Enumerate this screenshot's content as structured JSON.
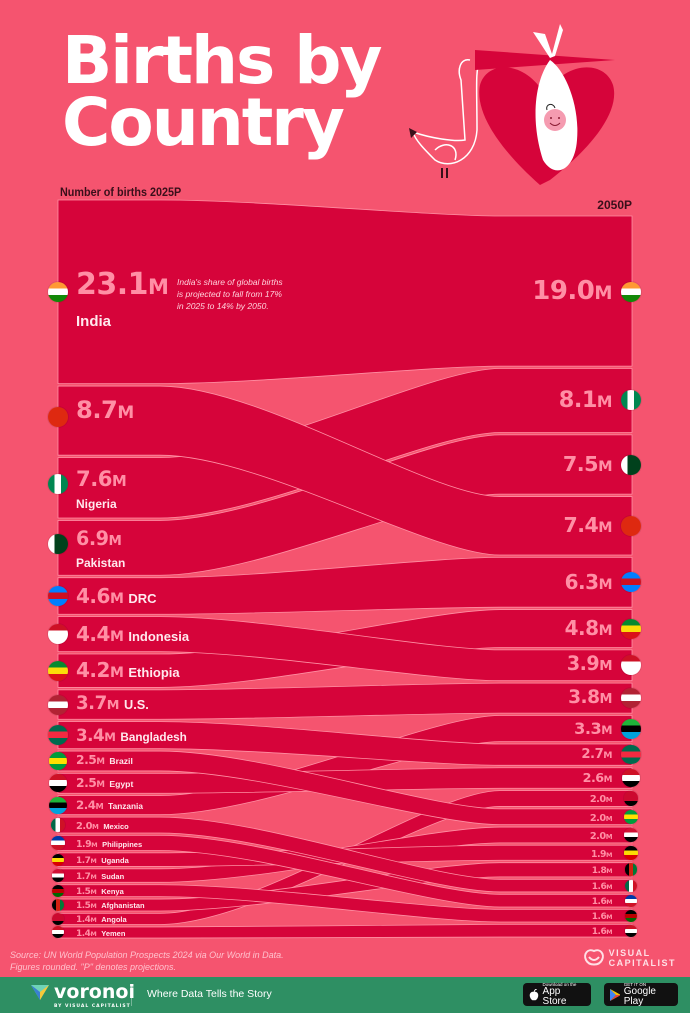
{
  "header": {
    "title_line1": "Births by",
    "title_line2": "Country",
    "subtitle_left": "Number of births 2025P",
    "subtitle_right": "2050P"
  },
  "annotation": "India's share of global births is projected to fall from 17% in 2025 to 14% by 2050.",
  "footer": {
    "source_line1": "Source: UN World Population Prospects 2024 via Our World in Data.",
    "source_line2": "Figures rounded. \"P\" denotes projections.",
    "brand_line1": "VISUAL",
    "brand_line2": "CAPITALIST",
    "voronoi": "voronoi",
    "voronoi_by": "BY VISUAL CAPITALIST",
    "tagline": "Where Data Tells the Story",
    "appstore_small": "Download on the",
    "appstore_big": "App Store",
    "googleplay_small": "GET IT ON",
    "googleplay_big": "Google Play"
  },
  "colors": {
    "background": "#f5546f",
    "band": "#d6043a",
    "value_text": "#ff8fa5",
    "footer": "#2e8f63"
  },
  "chart_data": {
    "type": "bump",
    "title": "Births by Country",
    "xlabel": "",
    "ylabel": "Number of births",
    "units": "millions",
    "categories": [
      "2025P",
      "2050P"
    ],
    "series": [
      {
        "name": "India",
        "values": [
          23.1,
          19.0
        ]
      },
      {
        "name": "China",
        "values": [
          8.7,
          7.4
        ]
      },
      {
        "name": "Nigeria",
        "values": [
          7.6,
          8.1
        ]
      },
      {
        "name": "Pakistan",
        "values": [
          6.9,
          7.5
        ]
      },
      {
        "name": "DRC",
        "values": [
          4.6,
          6.3
        ]
      },
      {
        "name": "Indonesia",
        "values": [
          4.4,
          3.9
        ]
      },
      {
        "name": "Ethiopia",
        "values": [
          4.2,
          4.8
        ]
      },
      {
        "name": "U.S.",
        "values": [
          3.7,
          3.8
        ]
      },
      {
        "name": "Bangladesh",
        "values": [
          3.4,
          2.7
        ]
      },
      {
        "name": "Brazil",
        "values": [
          2.5,
          2.0
        ]
      },
      {
        "name": "Egypt",
        "values": [
          2.5,
          2.6
        ]
      },
      {
        "name": "Tanzania",
        "values": [
          2.4,
          3.3
        ]
      },
      {
        "name": "Mexico",
        "values": [
          2.0,
          1.6
        ]
      },
      {
        "name": "Philippines",
        "values": [
          1.9,
          1.6
        ]
      },
      {
        "name": "Uganda",
        "values": [
          1.7,
          1.9
        ]
      },
      {
        "name": "Sudan",
        "values": [
          1.7,
          2.0
        ]
      },
      {
        "name": "Kenya",
        "values": [
          1.5,
          1.6
        ]
      },
      {
        "name": "Afghanistan",
        "values": [
          1.5,
          1.8
        ]
      },
      {
        "name": "Angola",
        "values": [
          1.4,
          2.0
        ]
      },
      {
        "name": "Yemen",
        "values": [
          1.4,
          1.6
        ]
      }
    ],
    "left_labels": [
      {
        "value": "23.1",
        "unit": "M",
        "name": "India"
      },
      {
        "value": "8.7",
        "unit": "M",
        "name": ""
      },
      {
        "value": "7.6",
        "unit": "M",
        "name": "Nigeria"
      },
      {
        "value": "6.9",
        "unit": "M",
        "name": "Pakistan"
      },
      {
        "value": "4.6",
        "unit": "M",
        "name": "DRC"
      },
      {
        "value": "4.4",
        "unit": "M",
        "name": "Indonesia"
      },
      {
        "value": "4.2",
        "unit": "M",
        "name": "Ethiopia"
      },
      {
        "value": "3.7",
        "unit": "M",
        "name": "U.S."
      },
      {
        "value": "3.4",
        "unit": "M",
        "name": "Bangladesh"
      },
      {
        "value": "2.5",
        "unit": "M",
        "name": "Brazil"
      },
      {
        "value": "2.5",
        "unit": "M",
        "name": "Egypt"
      },
      {
        "value": "2.4",
        "unit": "M",
        "name": "Tanzania"
      },
      {
        "value": "2.0",
        "unit": "M",
        "name": "Mexico"
      },
      {
        "value": "1.9",
        "unit": "M",
        "name": "Philippines"
      },
      {
        "value": "1.7",
        "unit": "M",
        "name": "Uganda"
      },
      {
        "value": "1.7",
        "unit": "M",
        "name": "Sudan"
      },
      {
        "value": "1.5",
        "unit": "M",
        "name": "Kenya"
      },
      {
        "value": "1.5",
        "unit": "M",
        "name": "Afghanistan"
      },
      {
        "value": "1.4",
        "unit": "M",
        "name": "Angola"
      },
      {
        "value": "1.4",
        "unit": "M",
        "name": "Yemen"
      }
    ],
    "right_labels": [
      {
        "value": "19.0",
        "unit": "M",
        "country": "India"
      },
      {
        "value": "8.1",
        "unit": "M",
        "country": "Nigeria"
      },
      {
        "value": "7.5",
        "unit": "M",
        "country": "Pakistan"
      },
      {
        "value": "7.4",
        "unit": "M",
        "country": "China"
      },
      {
        "value": "6.3",
        "unit": "M",
        "country": "DRC"
      },
      {
        "value": "4.8",
        "unit": "M",
        "country": "Ethiopia"
      },
      {
        "value": "3.9",
        "unit": "M",
        "country": "Indonesia"
      },
      {
        "value": "3.8",
        "unit": "M",
        "country": "U.S."
      },
      {
        "value": "3.3",
        "unit": "M",
        "country": "Tanzania"
      },
      {
        "value": "2.7",
        "unit": "M",
        "country": "Bangladesh"
      },
      {
        "value": "2.6",
        "unit": "M",
        "country": "Egypt"
      },
      {
        "value": "2.0",
        "unit": "M",
        "country": "Angola"
      },
      {
        "value": "2.0",
        "unit": "M",
        "country": "Brazil"
      },
      {
        "value": "2.0",
        "unit": "M",
        "country": "Sudan"
      },
      {
        "value": "1.9",
        "unit": "M",
        "country": "Uganda"
      },
      {
        "value": "1.8",
        "unit": "M",
        "country": "Afghanistan"
      },
      {
        "value": "1.6",
        "unit": "M",
        "country": "Mexico"
      },
      {
        "value": "1.6",
        "unit": "M",
        "country": "Philippines"
      },
      {
        "value": "1.6",
        "unit": "M",
        "country": "Kenya"
      },
      {
        "value": "1.6",
        "unit": "M",
        "country": "Yemen"
      }
    ]
  }
}
